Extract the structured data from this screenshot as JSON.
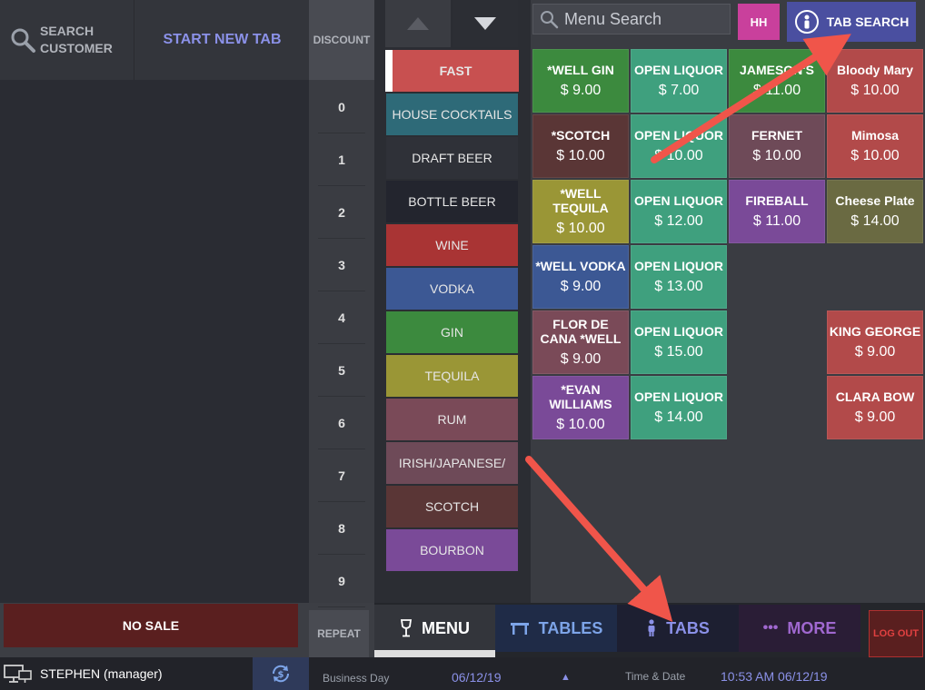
{
  "header": {
    "search_customer_label": "SEARCH\nCUSTOMER",
    "start_new_tab_label": "START NEW TAB"
  },
  "left_panel": {
    "no_sale_label": "NO SALE"
  },
  "discount": {
    "header": "DISCOUNT",
    "keys": [
      "0",
      "1",
      "2",
      "3",
      "4",
      "5",
      "6",
      "7",
      "8",
      "9"
    ],
    "repeat_label": "REPEAT"
  },
  "categories": [
    {
      "label": "FAST",
      "color": "#c85050",
      "selected": true
    },
    {
      "label": "HOUSE COCKTAILS",
      "color": "#2e6a78"
    },
    {
      "label": "DRAFT BEER",
      "color": "#2f3138"
    },
    {
      "label": "BOTTLE BEER",
      "color": "#23252e"
    },
    {
      "label": "WINE",
      "color": "#a93434"
    },
    {
      "label": "VODKA",
      "color": "#3c5894"
    },
    {
      "label": "GIN",
      "color": "#3c8a3e"
    },
    {
      "label": "TEQUILA",
      "color": "#9a9636"
    },
    {
      "label": "RUM",
      "color": "#7a4a58"
    },
    {
      "label": "IRISH/JAPANESE/",
      "color": "#6e4a58"
    },
    {
      "label": "SCOTCH",
      "color": "#5a3636"
    },
    {
      "label": "BOURBON",
      "color": "#7a4a98"
    }
  ],
  "menu_search": {
    "placeholder": "Menu Search"
  },
  "hh_label": "HH",
  "tab_search_label": "TAB SEARCH",
  "items": [
    {
      "name": "*WELL GIN",
      "price": "$ 9.00",
      "color": "#3c8a3e",
      "col": 0,
      "row": 0
    },
    {
      "name": "OPEN LIQUOR",
      "price": "$ 7.00",
      "color": "#3fa07e",
      "col": 1,
      "row": 0
    },
    {
      "name": "JAMESON'S",
      "price": "$ 11.00",
      "color": "#3c8a3e",
      "col": 2,
      "row": 0
    },
    {
      "name": "Bloody Mary",
      "price": "$ 10.00",
      "color": "#b24a4a",
      "col": 3,
      "row": 0
    },
    {
      "name": "*SCOTCH",
      "price": "$ 10.00",
      "color": "#5a3636",
      "col": 0,
      "row": 1
    },
    {
      "name": "OPEN LIQUOR",
      "price": "$ 10.00",
      "color": "#3fa07e",
      "col": 1,
      "row": 1
    },
    {
      "name": "FERNET",
      "price": "$ 10.00",
      "color": "#6e4a58",
      "col": 2,
      "row": 1
    },
    {
      "name": "Mimosa",
      "price": "$ 10.00",
      "color": "#b24a4a",
      "col": 3,
      "row": 1
    },
    {
      "name": "*WELL TEQUILA",
      "price": "$ 10.00",
      "color": "#9a9636",
      "col": 0,
      "row": 2
    },
    {
      "name": "OPEN LIQUOR",
      "price": "$ 12.00",
      "color": "#3fa07e",
      "col": 1,
      "row": 2
    },
    {
      "name": "FIREBALL",
      "price": "$ 11.00",
      "color": "#7a4a98",
      "col": 2,
      "row": 2
    },
    {
      "name": "Cheese Plate",
      "price": "$ 14.00",
      "color": "#6a6a42",
      "col": 3,
      "row": 2
    },
    {
      "name": "*WELL VODKA",
      "price": "$ 9.00",
      "color": "#3c5894",
      "col": 0,
      "row": 3
    },
    {
      "name": "OPEN LIQUOR",
      "price": "$ 13.00",
      "color": "#3fa07e",
      "col": 1,
      "row": 3
    },
    {
      "name": "FLOR DE CANA *WELL",
      "price": "$ 9.00",
      "color": "#7a4a58",
      "col": 0,
      "row": 4
    },
    {
      "name": "OPEN LIQUOR",
      "price": "$ 15.00",
      "color": "#3fa07e",
      "col": 1,
      "row": 4
    },
    {
      "name": "KING GEORGE",
      "price": "$ 9.00",
      "color": "#b24a4a",
      "col": 3,
      "row": 4
    },
    {
      "name": "*EVAN WILLIAMS",
      "price": "$ 10.00",
      "color": "#7a4a98",
      "col": 0,
      "row": 5
    },
    {
      "name": "OPEN LIQUOR",
      "price": "$ 14.00",
      "color": "#3fa07e",
      "col": 1,
      "row": 5
    },
    {
      "name": "CLARA BOW",
      "price": "$ 9.00",
      "color": "#b24a4a",
      "col": 3,
      "row": 5
    }
  ],
  "nav": {
    "menu_label": "MENU",
    "tables_label": "TABLES",
    "tabs_label": "TABS",
    "more_label": "MORE",
    "logout_label": "LOG OUT",
    "active": "MENU"
  },
  "status": {
    "user": "STEPHEN (manager)",
    "business_day_label": "Business Day",
    "business_day_value": "06/12/19",
    "time_label": "Time & Date",
    "time_value": "10:53 AM 06/12/19"
  },
  "annotation_color": "#f0554a"
}
